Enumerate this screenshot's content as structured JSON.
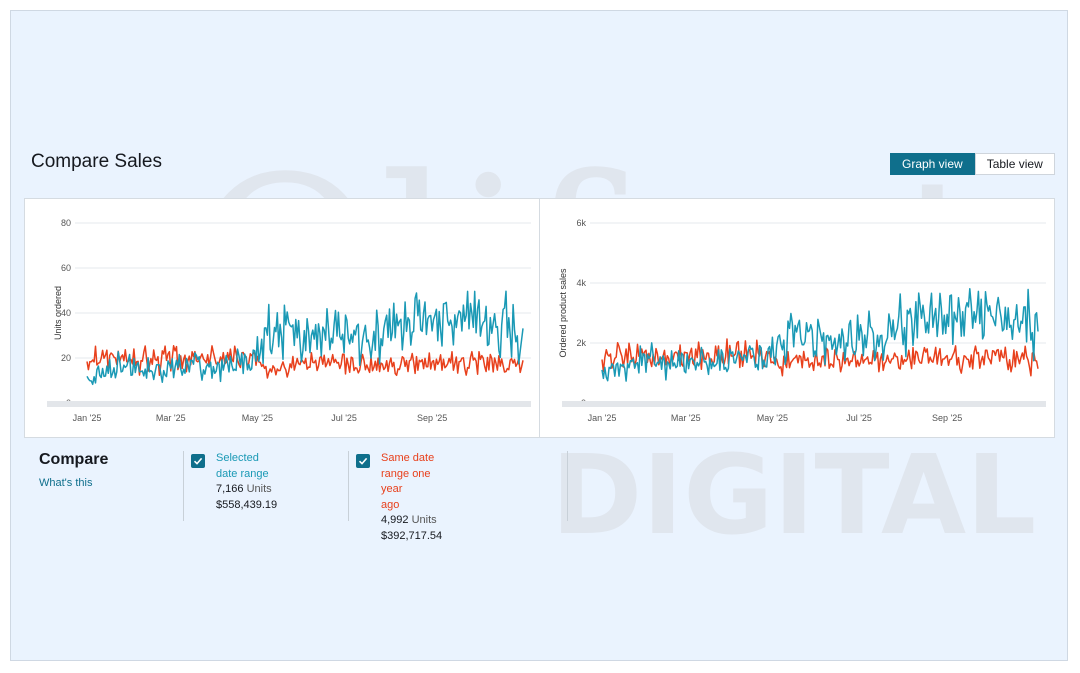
{
  "header": {
    "title": "Compare Sales"
  },
  "view_toggle": {
    "graph_label": "Graph view",
    "table_label": "Table view"
  },
  "watermark": {
    "line1": "Olifant",
    "line2": "DIGITAL"
  },
  "compare": {
    "title": "Compare",
    "link": "What's this",
    "selected": {
      "label": "Selected date range",
      "units": "7,166",
      "units_label": "Units",
      "sales": "$558,439.19"
    },
    "previous": {
      "label_line1": "Same date range one year",
      "label_line2": "ago",
      "units": "4,992",
      "units_label": "Units",
      "sales": "$392,717.54"
    }
  },
  "colors": {
    "selected": "#1a99b5",
    "previous": "#e8401c",
    "accent": "#0f6f8c"
  },
  "chart_data": [
    {
      "type": "line",
      "title": "",
      "xlabel": "",
      "ylabel": "Units ordered",
      "ylim": [
        0,
        80
      ],
      "yticks": [
        0,
        20,
        40,
        60,
        80
      ],
      "ytick_labels": [
        "0",
        "20",
        "40",
        "60",
        "80"
      ],
      "xlim": [
        0,
        307
      ],
      "xticks": [
        0,
        59,
        120,
        181,
        243
      ],
      "xtick_labels": [
        "Jan '25",
        "Mar '25",
        "May '25",
        "Jul '25",
        "Sep '25"
      ],
      "series": [
        {
          "name": "Selected date range",
          "color": "#1a99b5",
          "keypoints": [
            [
              0,
              10
            ],
            [
              15,
              15
            ],
            [
              30,
              17
            ],
            [
              45,
              14
            ],
            [
              60,
              16
            ],
            [
              75,
              17
            ],
            [
              90,
              15
            ],
            [
              105,
              18
            ],
            [
              118,
              20
            ],
            [
              125,
              33
            ],
            [
              135,
              35
            ],
            [
              150,
              32
            ],
            [
              165,
              28
            ],
            [
              180,
              30
            ],
            [
              195,
              27
            ],
            [
              210,
              33
            ],
            [
              225,
              37
            ],
            [
              235,
              42
            ],
            [
              245,
              38
            ],
            [
              255,
              34
            ],
            [
              265,
              40
            ],
            [
              275,
              38
            ],
            [
              285,
              32
            ],
            [
              295,
              35
            ],
            [
              307,
              28
            ]
          ]
        },
        {
          "name": "Same date range one year ago",
          "color": "#e8401c",
          "keypoints": [
            [
              0,
              18
            ],
            [
              15,
              20
            ],
            [
              30,
              20
            ],
            [
              45,
              19
            ],
            [
              60,
              20
            ],
            [
              75,
              19
            ],
            [
              90,
              20
            ],
            [
              105,
              20
            ],
            [
              118,
              19
            ],
            [
              125,
              16
            ],
            [
              135,
              17
            ],
            [
              150,
              18
            ],
            [
              165,
              18
            ],
            [
              180,
              17
            ],
            [
              195,
              17
            ],
            [
              210,
              17
            ],
            [
              225,
              18
            ],
            [
              235,
              19
            ],
            [
              245,
              18
            ],
            [
              255,
              17
            ],
            [
              265,
              18
            ],
            [
              275,
              19
            ],
            [
              285,
              18
            ],
            [
              295,
              17
            ],
            [
              307,
              16
            ]
          ]
        }
      ]
    },
    {
      "type": "line",
      "title": "",
      "xlabel": "",
      "ylabel": "Ordered product sales",
      "ylim": [
        0,
        6000
      ],
      "yticks": [
        0,
        2000,
        4000,
        6000
      ],
      "ytick_labels": [
        "0",
        "2k",
        "4k",
        "6k"
      ],
      "xlim": [
        0,
        307
      ],
      "xticks": [
        0,
        59,
        120,
        181,
        243
      ],
      "xtick_labels": [
        "Jan '25",
        "Mar '25",
        "May '25",
        "Jul '25",
        "Sep '25"
      ],
      "series": [
        {
          "name": "Selected date range",
          "color": "#1a99b5",
          "keypoints": [
            [
              0,
              900
            ],
            [
              15,
              1300
            ],
            [
              30,
              1400
            ],
            [
              45,
              1300
            ],
            [
              60,
              1350
            ],
            [
              75,
              1400
            ],
            [
              90,
              1350
            ],
            [
              105,
              1450
            ],
            [
              118,
              1500
            ],
            [
              125,
              2000
            ],
            [
              135,
              2300
            ],
            [
              150,
              2300
            ],
            [
              165,
              2100
            ],
            [
              180,
              2200
            ],
            [
              195,
              2100
            ],
            [
              210,
              2500
            ],
            [
              225,
              2700
            ],
            [
              235,
              2900
            ],
            [
              245,
              2800
            ],
            [
              255,
              2600
            ],
            [
              265,
              3000
            ],
            [
              275,
              2900
            ],
            [
              285,
              2500
            ],
            [
              295,
              2700
            ],
            [
              307,
              2400
            ]
          ]
        },
        {
          "name": "Same date range one year ago",
          "color": "#e8401c",
          "keypoints": [
            [
              0,
              1500
            ],
            [
              15,
              1600
            ],
            [
              30,
              1600
            ],
            [
              45,
              1550
            ],
            [
              60,
              1600
            ],
            [
              75,
              1550
            ],
            [
              90,
              1600
            ],
            [
              105,
              1600
            ],
            [
              118,
              1550
            ],
            [
              125,
              1300
            ],
            [
              135,
              1400
            ],
            [
              150,
              1450
            ],
            [
              165,
              1450
            ],
            [
              180,
              1400
            ],
            [
              195,
              1400
            ],
            [
              210,
              1450
            ],
            [
              225,
              1500
            ],
            [
              235,
              1550
            ],
            [
              245,
              1500
            ],
            [
              255,
              1400
            ],
            [
              265,
              1500
            ],
            [
              275,
              1550
            ],
            [
              285,
              1500
            ],
            [
              295,
              1450
            ],
            [
              307,
              1300
            ]
          ]
        }
      ]
    }
  ]
}
